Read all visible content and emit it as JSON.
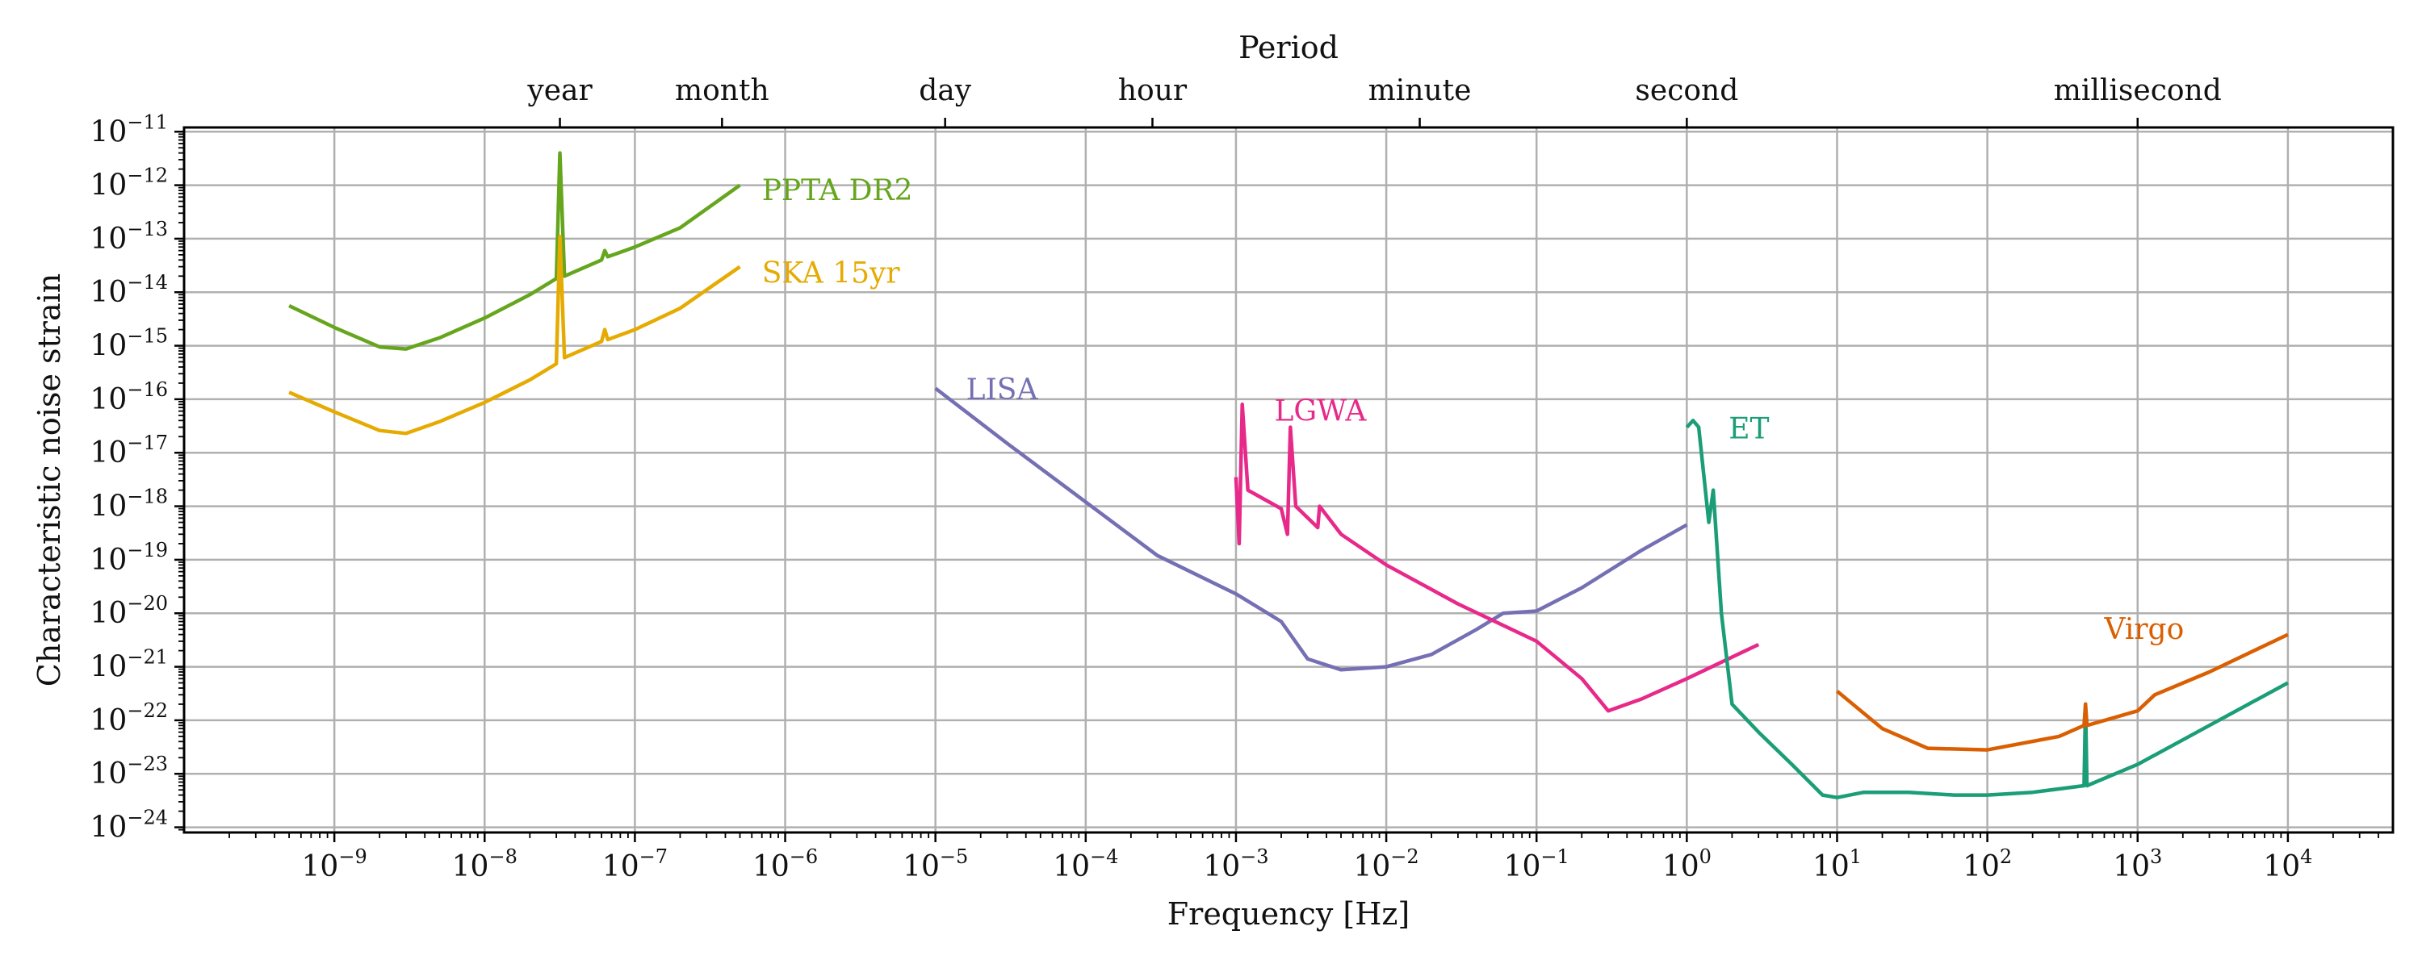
{
  "chart_data": {
    "type": "line",
    "title": "",
    "xlabel": "Frequency [Hz]",
    "ylabel": "Characteristic noise strain",
    "top_axis_label": "Period",
    "x_scale": "log",
    "y_scale": "log",
    "xlim": [
      1e-10,
      50000
    ],
    "ylim": [
      8e-25,
      1.2e-11
    ],
    "grid": true,
    "x_ticks": [
      {
        "value": 1e-09,
        "base": "10",
        "exp": "−9"
      },
      {
        "value": 1e-08,
        "base": "10",
        "exp": "−8"
      },
      {
        "value": 1e-07,
        "base": "10",
        "exp": "−7"
      },
      {
        "value": 1e-06,
        "base": "10",
        "exp": "−6"
      },
      {
        "value": 1e-05,
        "base": "10",
        "exp": "−5"
      },
      {
        "value": 0.0001,
        "base": "10",
        "exp": "−4"
      },
      {
        "value": 0.001,
        "base": "10",
        "exp": "−3"
      },
      {
        "value": 0.01,
        "base": "10",
        "exp": "−2"
      },
      {
        "value": 0.1,
        "base": "10",
        "exp": "−1"
      },
      {
        "value": 1,
        "base": "10",
        "exp": "0"
      },
      {
        "value": 10,
        "base": "10",
        "exp": "1"
      },
      {
        "value": 100,
        "base": "10",
        "exp": "2"
      },
      {
        "value": 1000,
        "base": "10",
        "exp": "3"
      },
      {
        "value": 10000,
        "base": "10",
        "exp": "4"
      }
    ],
    "y_ticks": [
      {
        "value": 1e-11,
        "base": "10",
        "exp": "−11"
      },
      {
        "value": 1e-12,
        "base": "10",
        "exp": "−12"
      },
      {
        "value": 1e-13,
        "base": "10",
        "exp": "−13"
      },
      {
        "value": 1e-14,
        "base": "10",
        "exp": "−14"
      },
      {
        "value": 1e-15,
        "base": "10",
        "exp": "−15"
      },
      {
        "value": 1e-16,
        "base": "10",
        "exp": "−16"
      },
      {
        "value": 1e-17,
        "base": "10",
        "exp": "−17"
      },
      {
        "value": 1e-18,
        "base": "10",
        "exp": "−18"
      },
      {
        "value": 1e-19,
        "base": "10",
        "exp": "−19"
      },
      {
        "value": 1e-20,
        "base": "10",
        "exp": "−20"
      },
      {
        "value": 1e-21,
        "base": "10",
        "exp": "−21"
      },
      {
        "value": 1e-22,
        "base": "10",
        "exp": "−22"
      },
      {
        "value": 1e-23,
        "base": "10",
        "exp": "−23"
      },
      {
        "value": 1e-24,
        "base": "10",
        "exp": "−24"
      }
    ],
    "period_ticks": [
      {
        "label": "year",
        "frequency": 3.17e-08
      },
      {
        "label": "month",
        "frequency": 3.8e-07
      },
      {
        "label": "day",
        "frequency": 1.16e-05
      },
      {
        "label": "hour",
        "frequency": 0.000278
      },
      {
        "label": "minute",
        "frequency": 0.0167
      },
      {
        "label": "second",
        "frequency": 1
      },
      {
        "label": "millisecond",
        "frequency": 1000
      }
    ],
    "series": [
      {
        "name": "PPTA DR2",
        "color": "#66a61e",
        "label_at": [
          7e-07,
          8e-13
        ],
        "points": [
          [
            5e-10,
            5.6e-15
          ],
          [
            1e-09,
            2.2e-15
          ],
          [
            2e-09,
            9.5e-16
          ],
          [
            3e-09,
            8.7e-16
          ],
          [
            5e-09,
            1.4e-15
          ],
          [
            1e-08,
            3.3e-15
          ],
          [
            2e-08,
            9e-15
          ],
          [
            3e-08,
            1.8e-14
          ],
          [
            3.17e-08,
            4e-12
          ],
          [
            3.4e-08,
            2e-14
          ],
          [
            6e-08,
            4e-14
          ],
          [
            6.3e-08,
            6e-14
          ],
          [
            6.6e-08,
            4.6e-14
          ],
          [
            1e-07,
            7e-14
          ],
          [
            2e-07,
            1.6e-13
          ],
          [
            5e-07,
            1e-12
          ]
        ]
      },
      {
        "name": "SKA 15yr",
        "color": "#e6ab02",
        "label_at": [
          7e-07,
          2.3e-14
        ],
        "points": [
          [
            5e-10,
            1.35e-16
          ],
          [
            1e-09,
            5.8e-17
          ],
          [
            2e-09,
            2.6e-17
          ],
          [
            3e-09,
            2.3e-17
          ],
          [
            5e-09,
            3.8e-17
          ],
          [
            1e-08,
            8.7e-17
          ],
          [
            2e-08,
            2.3e-16
          ],
          [
            3e-08,
            4.6e-16
          ],
          [
            3.17e-08,
            1.1e-13
          ],
          [
            3.4e-08,
            6e-16
          ],
          [
            6e-08,
            1.2e-15
          ],
          [
            6.3e-08,
            2e-15
          ],
          [
            6.6e-08,
            1.3e-15
          ],
          [
            1e-07,
            2e-15
          ],
          [
            2e-07,
            5e-15
          ],
          [
            5e-07,
            3e-14
          ]
        ]
      },
      {
        "name": "LISA",
        "color": "#7570b3",
        "label_at": [
          1.6e-05,
          1.5e-16
        ],
        "points": [
          [
            1e-05,
            1.6e-16
          ],
          [
            3e-05,
            1.5e-17
          ],
          [
            0.0001,
            1.2e-18
          ],
          [
            0.0003,
            1.2e-19
          ],
          [
            0.001,
            2.3e-20
          ],
          [
            0.002,
            7e-21
          ],
          [
            0.003,
            1.4e-21
          ],
          [
            0.005,
            8.8e-22
          ],
          [
            0.01,
            1e-21
          ],
          [
            0.02,
            1.7e-21
          ],
          [
            0.04,
            5e-21
          ],
          [
            0.06,
            1e-20
          ],
          [
            0.1,
            1.1e-20
          ],
          [
            0.2,
            3e-20
          ],
          [
            0.5,
            1.5e-19
          ],
          [
            1,
            4.5e-19
          ]
        ]
      },
      {
        "name": "LGWA",
        "color": "#e7298a",
        "label_at": [
          0.0018,
          6e-17
        ],
        "points": [
          [
            0.001,
            3.5e-18
          ],
          [
            0.00105,
            2e-19
          ],
          [
            0.0011,
            8e-17
          ],
          [
            0.0012,
            2e-18
          ],
          [
            0.002,
            9e-19
          ],
          [
            0.0022,
            3e-19
          ],
          [
            0.0023,
            3e-17
          ],
          [
            0.0025,
            1e-18
          ],
          [
            0.0035,
            4e-19
          ],
          [
            0.0036,
            1e-18
          ],
          [
            0.005,
            3e-19
          ],
          [
            0.01,
            8e-20
          ],
          [
            0.03,
            1.5e-20
          ],
          [
            0.1,
            3e-21
          ],
          [
            0.2,
            6e-22
          ],
          [
            0.3,
            1.5e-22
          ],
          [
            0.5,
            2.5e-22
          ],
          [
            1,
            6e-22
          ],
          [
            3,
            2.6e-21
          ]
        ]
      },
      {
        "name": "ET",
        "color": "#1b9e77",
        "label_at": [
          1.9,
          2.8e-17
        ],
        "points": [
          [
            1,
            3e-17
          ],
          [
            1.1,
            4e-17
          ],
          [
            1.2,
            3e-17
          ],
          [
            1.4,
            5e-19
          ],
          [
            1.5,
            2e-18
          ],
          [
            1.7,
            1e-20
          ],
          [
            2,
            2e-22
          ],
          [
            3,
            6e-23
          ],
          [
            5,
            1.5e-23
          ],
          [
            8,
            4e-24
          ],
          [
            10,
            3.6e-24
          ],
          [
            15,
            4.5e-24
          ],
          [
            30,
            4.5e-24
          ],
          [
            60,
            4e-24
          ],
          [
            100,
            4e-24
          ],
          [
            200,
            4.5e-24
          ],
          [
            440,
            6e-24
          ],
          [
            450,
            2e-22
          ],
          [
            460,
            6e-24
          ],
          [
            1000,
            1.5e-23
          ],
          [
            3000,
            8e-23
          ],
          [
            10000,
            5e-22
          ]
        ]
      },
      {
        "name": "Virgo",
        "color": "#d95f02",
        "label_at": [
          600,
          5e-21
        ],
        "points": [
          [
            10,
            3.5e-22
          ],
          [
            20,
            7e-23
          ],
          [
            40,
            3e-23
          ],
          [
            100,
            2.8e-23
          ],
          [
            300,
            5e-23
          ],
          [
            440,
            8e-23
          ],
          [
            450,
            2e-22
          ],
          [
            460,
            8e-23
          ],
          [
            1000,
            1.5e-22
          ],
          [
            1300,
            3e-22
          ],
          [
            3000,
            8e-22
          ],
          [
            10000,
            4e-21
          ]
        ]
      }
    ]
  }
}
